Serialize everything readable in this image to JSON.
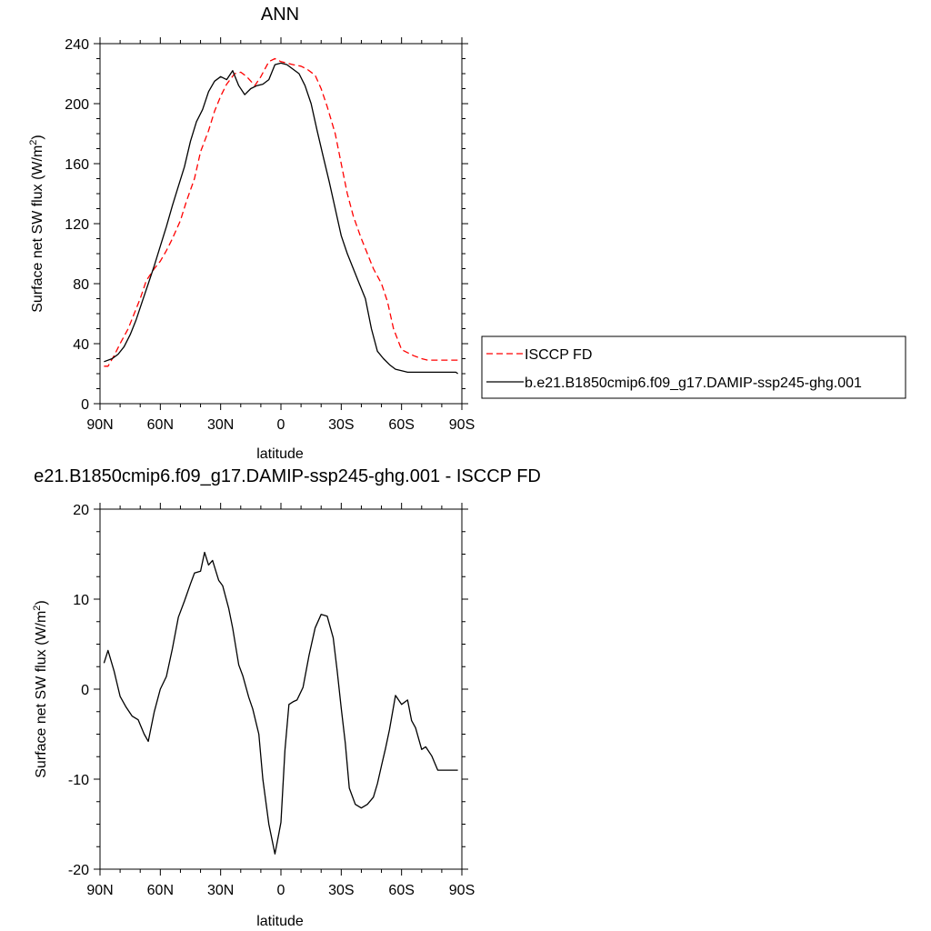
{
  "charts": [
    {
      "type": "line",
      "title": "ANN",
      "xlabel": "latitude",
      "ylabel": "Surface net SW flux (W/m²)",
      "ylabel_main": "Surface net SW flux (W/m",
      "ylabel_sup": "2",
      "ylabel_close": ")",
      "xlim": [
        -90,
        90
      ],
      "ylim": [
        0,
        240
      ],
      "xticks": [
        -90,
        -60,
        -30,
        0,
        30,
        60,
        90
      ],
      "xticklabels": [
        "90N",
        "60N",
        "30N",
        "0",
        "30S",
        "60S",
        "90S"
      ],
      "yticks": [
        0,
        40,
        80,
        120,
        160,
        200,
        240
      ],
      "yticklabels": [
        "0",
        "40",
        "80",
        "120",
        "160",
        "200",
        "240"
      ],
      "legend": {
        "placement": "right",
        "entries": [
          "ISCCP FD",
          "b.e21.B1850cmip6.f09_g17.DAMIP-ssp245-ghg.001"
        ]
      },
      "series": [
        {
          "name": "ISCCP FD",
          "color": "#ff0000",
          "dash": "dashed",
          "x": [
            -88,
            -86,
            -83,
            -80,
            -76,
            -73,
            -70,
            -67,
            -63,
            -60,
            -57,
            -54,
            -50,
            -47,
            -43,
            -40,
            -36,
            -33,
            -30,
            -27,
            -23,
            -20,
            -17,
            -13,
            -10,
            -6,
            -3,
            0,
            3,
            6,
            10,
            13,
            17,
            20,
            23,
            27,
            30,
            33,
            36,
            40,
            43,
            46,
            50,
            53,
            56,
            60,
            63,
            66,
            70,
            73,
            76,
            80,
            83,
            86,
            88
          ],
          "y": [
            25,
            25,
            32,
            40,
            50,
            60,
            70,
            82,
            90,
            95,
            102,
            110,
            122,
            135,
            150,
            168,
            182,
            195,
            205,
            213,
            220,
            221,
            218,
            212,
            218,
            228,
            230,
            228,
            227,
            226,
            225,
            223,
            219,
            210,
            198,
            180,
            160,
            140,
            125,
            110,
            100,
            90,
            80,
            68,
            50,
            36,
            34,
            32,
            30,
            29,
            29,
            29,
            29,
            29,
            29
          ]
        },
        {
          "name": "b.e21.B1850cmip6.f09_g17.DAMIP-ssp245-ghg.001",
          "color": "#000000",
          "dash": "solid",
          "x": [
            -88,
            -84,
            -81,
            -78,
            -75,
            -72,
            -69,
            -66,
            -63,
            -60,
            -57,
            -54,
            -51,
            -48,
            -45,
            -42,
            -39,
            -36,
            -33,
            -30,
            -27,
            -24,
            -21,
            -18,
            -15,
            -12,
            -9,
            -6,
            -3,
            0,
            3,
            6,
            9,
            12,
            15,
            18,
            21,
            24,
            27,
            30,
            33,
            36,
            39,
            42,
            45,
            48,
            51,
            54,
            57,
            60,
            63,
            66,
            69,
            72,
            75,
            78,
            81,
            84,
            87,
            88
          ],
          "y": [
            28,
            30,
            33,
            38,
            46,
            56,
            68,
            80,
            92,
            105,
            118,
            132,
            145,
            158,
            175,
            188,
            196,
            208,
            215,
            218,
            216,
            222,
            212,
            206,
            210,
            212,
            213,
            216,
            226,
            227,
            226,
            223,
            220,
            212,
            200,
            182,
            165,
            148,
            130,
            112,
            100,
            90,
            80,
            70,
            50,
            35,
            30,
            26,
            23,
            22,
            21,
            21,
            21,
            21,
            21,
            21,
            21,
            21,
            21,
            20
          ]
        }
      ]
    },
    {
      "type": "line",
      "title": "e21.B1850cmip6.f09_g17.DAMIP-ssp245-ghg.001 - ISCCP FD",
      "xlabel": "latitude",
      "ylabel": "Surface net SW flux (W/m²)",
      "ylabel_main": "Surface net SW flux (W/m",
      "ylabel_sup": "2",
      "ylabel_close": ")",
      "xlim": [
        -90,
        90
      ],
      "ylim": [
        -20,
        20
      ],
      "xticks": [
        -90,
        -60,
        -30,
        0,
        30,
        60,
        90
      ],
      "xticklabels": [
        "90N",
        "60N",
        "30N",
        "0",
        "30S",
        "60S",
        "90S"
      ],
      "yticks": [
        -20,
        -10,
        0,
        10,
        20
      ],
      "yticklabels": [
        "-20",
        "-10",
        "0",
        "10",
        "20"
      ],
      "series": [
        {
          "name": "",
          "color": "#000000",
          "dash": "solid",
          "x": [
            -88,
            -86,
            -83,
            -80,
            -77,
            -74,
            -71,
            -68,
            -66,
            -63,
            -60,
            -57,
            -54,
            -51,
            -48,
            -45,
            -43,
            -40,
            -38,
            -36,
            -34,
            -31,
            -29,
            -26,
            -24,
            -21,
            -19,
            -16,
            -14,
            -11,
            -9,
            -6,
            -3,
            -1,
            0,
            2,
            4,
            6,
            8,
            11,
            14,
            17,
            20,
            23,
            26,
            28,
            30,
            32,
            34,
            37,
            40,
            43,
            46,
            48,
            50,
            52,
            54,
            57,
            60,
            63,
            65,
            67,
            70,
            72,
            75,
            78,
            81,
            84,
            86,
            88
          ],
          "y": [
            2.9,
            4.3,
            2.0,
            -0.8,
            -2.0,
            -3.0,
            -3.4,
            -5.0,
            -5.8,
            -2.5,
            0.0,
            1.4,
            4.5,
            8.0,
            9.8,
            11.7,
            12.9,
            13.1,
            15.2,
            13.8,
            14.3,
            12.1,
            11.5,
            9.0,
            6.8,
            2.7,
            1.5,
            -0.9,
            -2.2,
            -5.0,
            -10.0,
            -15.0,
            -18.3,
            -16.0,
            -14.8,
            -6.8,
            -1.7,
            -1.4,
            -1.2,
            0.2,
            3.8,
            6.8,
            8.3,
            8.1,
            5.7,
            2.0,
            -2.1,
            -6.0,
            -11.0,
            -12.8,
            -13.2,
            -12.8,
            -12.0,
            -10.5,
            -8.5,
            -6.6,
            -4.5,
            -0.7,
            -1.7,
            -1.2,
            -3.5,
            -4.3,
            -6.7,
            -6.4,
            -7.4,
            -9.0,
            -9.0,
            -9.0,
            -9.0,
            -9.0
          ]
        }
      ]
    }
  ],
  "colors": {
    "obs": "#ff0000",
    "model": "#000000",
    "axis": "#000000",
    "legend_border": "#000000"
  }
}
